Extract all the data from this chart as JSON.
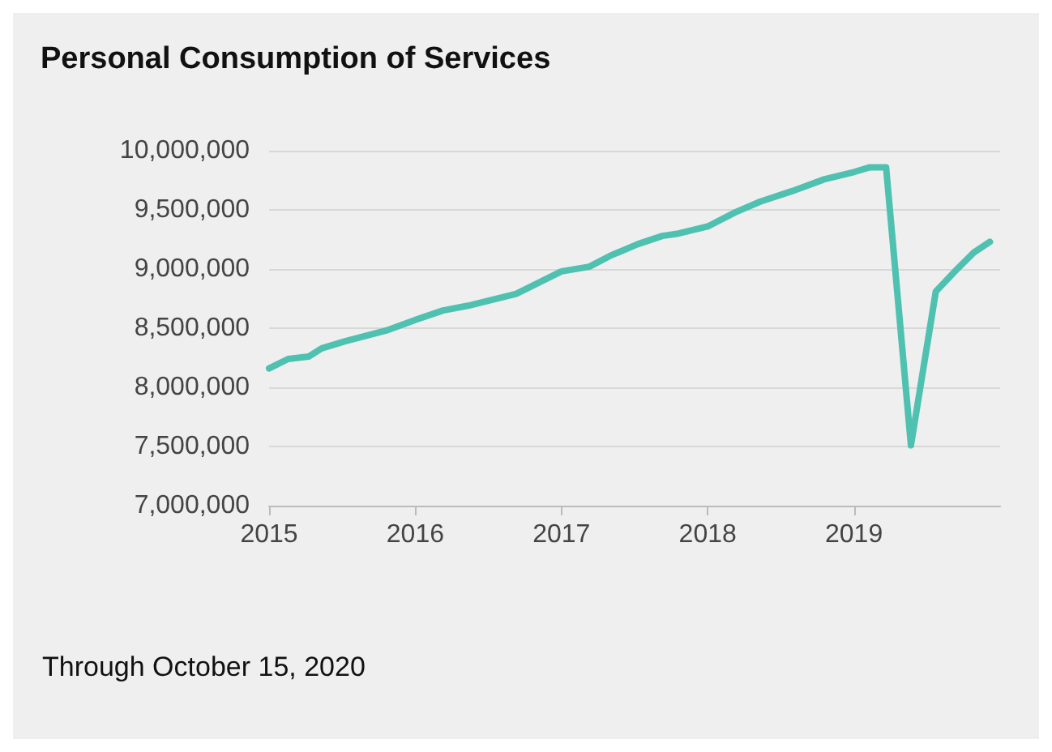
{
  "chart_data": {
    "type": "line",
    "title": "Personal Consumption of Services",
    "annotations": [
      "Through October 15, 2020"
    ],
    "x": [
      2015.0,
      2015.13,
      2015.27,
      2015.36,
      2015.52,
      2015.8,
      2016.0,
      2016.19,
      2016.36,
      2016.69,
      2017.0,
      2017.19,
      2017.33,
      2017.52,
      2017.69,
      2017.8,
      2018.0,
      2018.19,
      2018.36,
      2018.58,
      2018.8,
      2019.0,
      2019.11,
      2019.22,
      2019.39,
      2019.56,
      2019.69,
      2019.82,
      2019.93
    ],
    "series": [
      {
        "color": "#4fc1b0",
        "values": [
          8160000,
          8240000,
          8260000,
          8330000,
          8390000,
          8480000,
          8570000,
          8650000,
          8690000,
          8790000,
          8980000,
          9020000,
          9110000,
          9210000,
          9280000,
          9300000,
          9360000,
          9480000,
          9570000,
          9660000,
          9760000,
          9820000,
          9860000,
          9860000,
          7510000,
          8810000,
          8980000,
          9140000,
          9230000
        ]
      }
    ],
    "xlim": [
      2015,
      2020
    ],
    "xticks": [
      2015,
      2016,
      2017,
      2018,
      2019
    ],
    "ylim": [
      7000000,
      10000000
    ],
    "yticks": [
      {
        "value": 7000000,
        "label": "7,000,000"
      },
      {
        "value": 7500000,
        "label": "7,500,000"
      },
      {
        "value": 8000000,
        "label": "8,000,000"
      },
      {
        "value": 8500000,
        "label": "8,500,000"
      },
      {
        "value": 9000000,
        "label": "9,000,000"
      },
      {
        "value": 9500000,
        "label": "9,500,000"
      },
      {
        "value": 10000000,
        "label": "10,000,000"
      }
    ],
    "grid": "y",
    "marker": "none",
    "line_style": "solid"
  }
}
